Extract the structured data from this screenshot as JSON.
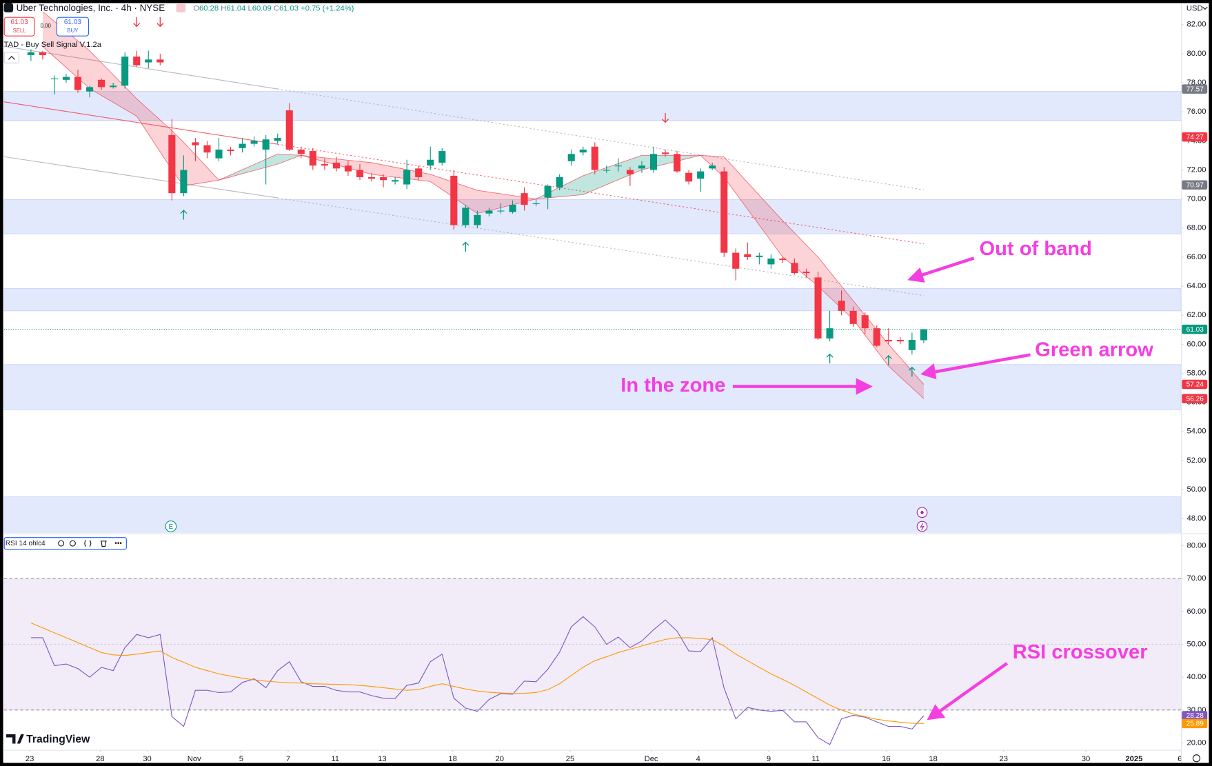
{
  "header": {
    "symbol": "Uber Technologies, Inc. · 4h · NYSE",
    "ohlc": [
      "O",
      "60.28",
      "H",
      "61.04",
      "L",
      "60.09",
      "C",
      "61.03",
      "+0.75 (+1.24%)"
    ],
    "sell_price": "61.03",
    "sell_label": "SELL",
    "spread": "0.00",
    "buy_price": "61.03",
    "buy_label": "BUY",
    "indicator": "TAD - Buy Sell Signal V.1.2a",
    "currency": "USD",
    "earnings": "E",
    "logo": "TradingView"
  },
  "annotations": [
    "Out of band",
    "Green arrow",
    "In the zone",
    "RSI crossover"
  ],
  "chart_data": [
    {
      "type": "candlestick",
      "up_color": "#089981",
      "down_color": "#f23645",
      "open": [
        79.9,
        80.1,
        78.3,
        78.2,
        78.4,
        77.4,
        78.2,
        77.7,
        77.8,
        79.8,
        79.4,
        79.6,
        74.4,
        70.4,
        73.9,
        73.7,
        72.8,
        73.4,
        73.5,
        73.8,
        73.4,
        74.0,
        76.1,
        73.4,
        73.3,
        72.4,
        72.5,
        72.3,
        72.0,
        71.5,
        71.5,
        71.2,
        71.0,
        72.1,
        72.3,
        72.5,
        71.6,
        68.2,
        68.2,
        69.0,
        69.2,
        69.1,
        70.4,
        69.7,
        70.1,
        70.8,
        72.6,
        73.2,
        73.6,
        72.0,
        72.3,
        72.0,
        72.1,
        72.0,
        73.2,
        73.1,
        71.8,
        71.4,
        72.1,
        71.9,
        66.3,
        66.2,
        66.0,
        65.5,
        65.9,
        65.6,
        65.0,
        64.6,
        60.4,
        63.0,
        62.3,
        62.0,
        61.1,
        60.3,
        60.3,
        59.6,
        60.28
      ],
      "high": [
        80.3,
        80.2,
        78.5,
        78.6,
        78.9,
        77.8,
        78.3,
        78.0,
        80.1,
        80.2,
        80.2,
        80.0,
        75.5,
        73.0,
        74.2,
        74.0,
        74.2,
        73.6,
        74.2,
        74.3,
        74.4,
        74.5,
        76.6,
        73.6,
        73.5,
        72.8,
        72.9,
        72.6,
        72.4,
        71.8,
        71.7,
        71.5,
        72.7,
        72.3,
        73.6,
        73.5,
        72.0,
        69.6,
        69.2,
        69.4,
        69.7,
        69.9,
        70.8,
        70.0,
        71.0,
        71.7,
        73.4,
        73.6,
        73.9,
        72.3,
        72.8,
        72.2,
        72.6,
        73.6,
        73.4,
        73.3,
        72.0,
        72.1,
        72.5,
        72.2,
        66.6,
        67.0,
        66.3,
        66.2,
        66.0,
        65.9,
        65.2,
        65.0,
        62.3,
        63.7,
        62.6,
        62.2,
        61.3,
        61.1,
        60.5,
        60.8,
        61.04
      ],
      "low": [
        79.5,
        79.6,
        77.2,
        78.0,
        77.3,
        77.0,
        77.5,
        77.6,
        77.6,
        79.1,
        79.0,
        79.2,
        69.9,
        70.2,
        72.6,
        72.8,
        72.6,
        73.0,
        73.2,
        73.6,
        71.0,
        73.8,
        73.3,
        72.8,
        72.0,
        72.0,
        71.9,
        71.6,
        71.3,
        71.2,
        70.8,
        71.0,
        70.7,
        71.3,
        72.0,
        72.3,
        67.9,
        68.0,
        68.0,
        68.8,
        69.0,
        69.0,
        69.2,
        69.5,
        69.3,
        70.6,
        72.3,
        73.0,
        71.7,
        71.8,
        71.9,
        70.9,
        71.8,
        71.8,
        72.9,
        71.8,
        71.0,
        70.5,
        72.0,
        66.0,
        64.4,
        65.8,
        65.5,
        65.2,
        65.6,
        64.8,
        64.6,
        60.3,
        60.2,
        62.0,
        61.2,
        60.7,
        59.8,
        60.0,
        60.0,
        59.3,
        60.09
      ],
      "close": [
        80.1,
        79.9,
        78.3,
        78.4,
        77.5,
        77.7,
        77.7,
        77.8,
        79.8,
        79.2,
        79.6,
        79.4,
        70.4,
        72.0,
        73.7,
        73.2,
        73.4,
        73.3,
        73.8,
        74.0,
        74.1,
        74.2,
        73.4,
        73.1,
        72.3,
        72.3,
        72.1,
        71.9,
        71.5,
        71.4,
        71.3,
        71.3,
        72.0,
        71.5,
        72.7,
        73.3,
        68.2,
        69.4,
        68.9,
        69.2,
        69.2,
        69.6,
        69.6,
        69.7,
        70.9,
        71.5,
        73.1,
        73.4,
        72.0,
        72.0,
        72.3,
        71.7,
        72.3,
        73.1,
        73.1,
        71.9,
        71.2,
        71.9,
        72.3,
        66.3,
        65.2,
        66.0,
        66.1,
        65.9,
        65.8,
        64.9,
        64.9,
        60.4,
        61.1,
        62.3,
        61.4,
        61.1,
        59.9,
        60.2,
        60.2,
        60.3,
        61.03
      ],
      "xlim": [
        -2.3,
        97.9
      ],
      "ylim": [
        47.04,
        83.43
      ],
      "yticks": [
        {
          "value": 82,
          "label": "82.00"
        },
        {
          "value": 80,
          "label": "80.00"
        },
        {
          "value": 78,
          "label": "78.00"
        },
        {
          "value": 76,
          "label": "76.00"
        },
        {
          "value": 74,
          "label": "74.00"
        },
        {
          "value": 72,
          "label": "72.00"
        },
        {
          "value": 70,
          "label": "70.00"
        },
        {
          "value": 68,
          "label": "68.00"
        },
        {
          "value": 66,
          "label": "66.00"
        },
        {
          "value": 64,
          "label": "64.00"
        },
        {
          "value": 62,
          "label": "62.00"
        },
        {
          "value": 60,
          "label": "60.00"
        },
        {
          "value": 58,
          "label": "58.00"
        },
        {
          "value": 56,
          "label": "56.00"
        },
        {
          "value": 54,
          "label": "54.00"
        },
        {
          "value": 52,
          "label": "52.00"
        },
        {
          "value": 50,
          "label": "50.00"
        },
        {
          "value": 48,
          "label": "48.00"
        }
      ],
      "grid": false,
      "zones": [
        [
          75.4,
          77.4
        ],
        [
          67.6,
          69.95
        ],
        [
          62.3,
          63.85
        ],
        [
          55.5,
          58.6
        ],
        [
          47.04,
          49.5
        ]
      ],
      "zone_color": "#dde5fb",
      "ribbon": {
        "x": [
          1,
          5,
          9,
          12,
          13,
          16,
          21,
          23,
          29,
          34,
          38,
          43,
          47,
          52,
          57,
          59,
          64,
          67,
          70,
          73,
          76
        ],
        "fast": [
          80.5,
          77.6,
          75.7,
          72.0,
          70.9,
          71.3,
          73.1,
          73.0,
          71.7,
          71.2,
          69.0,
          70.0,
          71.6,
          73.0,
          73.0,
          71.5,
          66.0,
          64.0,
          61.7,
          58.5,
          56.26
        ],
        "slow": [
          82.9,
          80.2,
          76.9,
          74.7,
          73.9,
          71.3,
          72.4,
          73.0,
          72.5,
          71.7,
          70.6,
          70.0,
          70.3,
          72.0,
          73.0,
          72.9,
          68.5,
          66.0,
          63.0,
          60.0,
          57.24
        ]
      },
      "channel": [
        {
          "x": [
            -2.3,
            21,
            76
          ],
          "values": [
            80.51,
            77.57,
            70.63
          ],
          "color": "#a3a6af"
        },
        {
          "x": [
            -2.3,
            21,
            76
          ],
          "values": [
            72.91,
            70.07,
            63.35
          ],
          "color": "#a3a6af"
        },
        {
          "x": [
            -2.3,
            21,
            76
          ],
          "values": [
            76.69,
            73.77,
            66.91
          ],
          "color": "#f23645"
        }
      ],
      "signals": {
        "sell": {
          "x": [
            9,
            11,
            54
          ],
          "values": [
            82.2,
            82.2,
            75.6
          ],
          "color": "#f23645"
        },
        "buy": {
          "x": [
            13,
            37,
            68,
            73,
            75
          ],
          "values": [
            68.9,
            66.7,
            59.0,
            58.9,
            58.1
          ],
          "color": "#089981"
        }
      },
      "axis_markers": [
        {
          "value": 77.57,
          "color": "#787b86"
        },
        {
          "value": 74.27,
          "color": "#f23645"
        },
        {
          "value": 70.97,
          "color": "#787b86"
        },
        {
          "value": 61.03,
          "color": "#089981",
          "line": true
        },
        {
          "value": 57.24,
          "color": "#f23645"
        },
        {
          "value": 56.26,
          "color": "#f23645"
        }
      ]
    },
    {
      "type": "line",
      "title": "RSI 14 ohlc4",
      "series": [
        {
          "color": "#7e57c2",
          "values": [
            52,
            52,
            43.5,
            44,
            42.6,
            40,
            43,
            42,
            49,
            53,
            52,
            53,
            28,
            25,
            36,
            36,
            35.3,
            35.5,
            38.4,
            39.5,
            36.8,
            42,
            44.7,
            38.6,
            37.2,
            37.2,
            36,
            35.5,
            35.5,
            34.4,
            33.6,
            33.5,
            37.5,
            38.2,
            44.7,
            47,
            33.6,
            30.6,
            29.6,
            33.2,
            35,
            34.8,
            38.8,
            38.6,
            42.4,
            47.6,
            55.3,
            58.4,
            55.3,
            50,
            52.2,
            49,
            51,
            54.4,
            57.4,
            54,
            48,
            47.8,
            52,
            36.7,
            27.3,
            30.8,
            30,
            29.6,
            29.9,
            26.4,
            26.4,
            21.6,
            19.5,
            27.3,
            28.4,
            27.8,
            26.4,
            25,
            25,
            24.2,
            28.28
          ]
        },
        {
          "color": "#ff9800",
          "values": [
            56.5,
            55,
            53.5,
            52,
            50.5,
            49,
            47.5,
            46.8,
            46.6,
            47,
            47.5,
            48,
            46,
            44.5,
            43,
            42,
            41,
            40.3,
            39.7,
            39.2,
            38.8,
            38.5,
            38.3,
            38.2,
            38,
            37.9,
            37.8,
            37.7,
            37.5,
            37.2,
            36.8,
            36.4,
            36,
            36.2,
            37.2,
            38,
            37.2,
            36.4,
            35.8,
            35.4,
            35.2,
            35,
            35.1,
            35.3,
            36.2,
            38,
            40.5,
            43,
            45,
            46.2,
            47.5,
            48.5,
            49.5,
            50.5,
            51.5,
            52,
            52,
            51.8,
            51.4,
            49.5,
            47,
            45,
            43,
            41,
            39.3,
            37.5,
            35.5,
            33.5,
            31.5,
            30,
            28.8,
            28,
            27.2,
            26.7,
            26.3,
            26,
            25.89
          ]
        }
      ],
      "xlim": [
        -2.3,
        97.9
      ],
      "ylim": [
        17.9,
        83.3
      ],
      "xticks": [
        {
          "value": -0.1,
          "label": "23"
        },
        {
          "value": 5.9,
          "label": "28"
        },
        {
          "value": 9.9,
          "label": "30"
        },
        {
          "value": 13.9,
          "label": "Nov"
        },
        {
          "value": 17.9,
          "label": "5"
        },
        {
          "value": 21.9,
          "label": "7"
        },
        {
          "value": 25.9,
          "label": "11"
        },
        {
          "value": 29.9,
          "label": "13"
        },
        {
          "value": 35.9,
          "label": "18"
        },
        {
          "value": 39.9,
          "label": "20"
        },
        {
          "value": 45.9,
          "label": "25"
        },
        {
          "value": 52.8,
          "label": "Dec"
        },
        {
          "value": 56.8,
          "label": "4"
        },
        {
          "value": 62.8,
          "label": "9"
        },
        {
          "value": 66.8,
          "label": "11"
        },
        {
          "value": 72.8,
          "label": "16"
        },
        {
          "value": 76.8,
          "label": "18"
        },
        {
          "value": 82.8,
          "label": "23"
        },
        {
          "value": 89.8,
          "label": "30"
        },
        {
          "value": 93.9,
          "label": "2025"
        },
        {
          "value": 97.8,
          "label": "6"
        }
      ],
      "yticks": [
        {
          "value": 80,
          "label": "80.00"
        },
        {
          "value": 70,
          "label": "70.00"
        },
        {
          "value": 60,
          "label": "60.00"
        },
        {
          "value": 50,
          "label": "50.00"
        },
        {
          "value": 40,
          "label": "40.00"
        },
        {
          "value": 30,
          "label": "30.00"
        },
        {
          "value": 20,
          "label": "20.00"
        }
      ],
      "levels": [
        70,
        50,
        30
      ],
      "band_color": "#ede7f6",
      "axis_markers": [
        {
          "value": 28.28,
          "color": "#7e57c2"
        },
        {
          "value": 25.89,
          "color": "#ff9800"
        }
      ]
    }
  ]
}
